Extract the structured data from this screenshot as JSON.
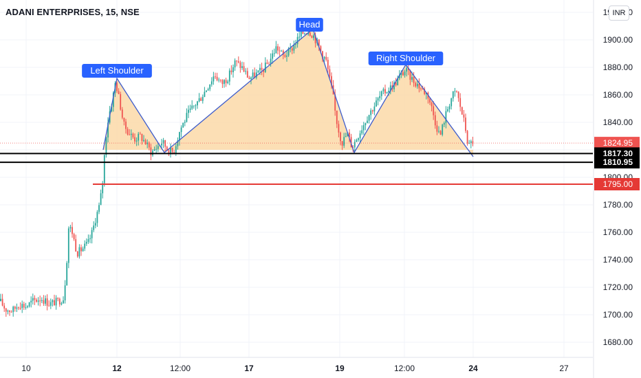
{
  "header": {
    "symbol_title": "ADANI ENTERPRISES, 15, NSE",
    "currency": "INR"
  },
  "colors": {
    "up": "#26a69a",
    "down": "#ef5350",
    "pattern_fill": "#fcd9a8",
    "pattern_line": "#3d5ccc",
    "label_bg": "#2962ff",
    "support": "#000000",
    "target": "#e53935",
    "grid": "#f0f3fa",
    "axis_text": "#131722"
  },
  "chart_data": {
    "type": "candlestick",
    "title": "ADANI ENTERPRISES, 15, NSE",
    "y_axis": {
      "ticks": [
        1680,
        1700,
        1720,
        1740,
        1760,
        1780,
        1800,
        1820,
        1840,
        1860,
        1880,
        1900,
        1920
      ],
      "tick_labels": [
        "1680.00",
        "1700.00",
        "1720.00",
        "1740.00",
        "1760.00",
        "1780.00",
        "1800.00",
        "",
        "1840.00",
        "1860.00",
        "1880.00",
        "1900.00",
        "1920.00"
      ],
      "range": [
        1669,
        1929
      ]
    },
    "x_axis": {
      "tick_labels": [
        "10",
        "12",
        "12:00",
        "17",
        "19",
        "12:00",
        "24",
        "27"
      ]
    },
    "price_path": [
      [
        0,
        1710
      ],
      [
        8,
        1704
      ],
      [
        18,
        1703
      ],
      [
        28,
        1708
      ],
      [
        38,
        1706
      ],
      [
        48,
        1710
      ],
      [
        60,
        1712
      ],
      [
        72,
        1708
      ],
      [
        85,
        1710
      ],
      [
        92,
        1712
      ],
      [
        96,
        1730
      ],
      [
        100,
        1765
      ],
      [
        105,
        1760
      ],
      [
        112,
        1745
      ],
      [
        120,
        1748
      ],
      [
        128,
        1752
      ],
      [
        134,
        1760
      ],
      [
        140,
        1772
      ],
      [
        145,
        1780
      ],
      [
        150,
        1800
      ],
      [
        153,
        1826
      ],
      [
        158,
        1845
      ],
      [
        163,
        1855
      ],
      [
        168,
        1870
      ],
      [
        174,
        1855
      ],
      [
        180,
        1838
      ],
      [
        188,
        1832
      ],
      [
        196,
        1828
      ],
      [
        204,
        1830
      ],
      [
        212,
        1825
      ],
      [
        220,
        1818
      ],
      [
        228,
        1822
      ],
      [
        236,
        1826
      ],
      [
        244,
        1820
      ],
      [
        252,
        1818
      ],
      [
        262,
        1835
      ],
      [
        272,
        1845
      ],
      [
        282,
        1852
      ],
      [
        292,
        1858
      ],
      [
        302,
        1866
      ],
      [
        312,
        1875
      ],
      [
        322,
        1868
      ],
      [
        332,
        1873
      ],
      [
        342,
        1884
      ],
      [
        352,
        1880
      ],
      [
        362,
        1872
      ],
      [
        372,
        1875
      ],
      [
        382,
        1878
      ],
      [
        392,
        1885
      ],
      [
        402,
        1895
      ],
      [
        412,
        1888
      ],
      [
        422,
        1892
      ],
      [
        432,
        1900
      ],
      [
        440,
        1905
      ],
      [
        448,
        1907
      ],
      [
        456,
        1903
      ],
      [
        462,
        1897
      ],
      [
        468,
        1890
      ],
      [
        474,
        1885
      ],
      [
        480,
        1870
      ],
      [
        484,
        1860
      ],
      [
        488,
        1845
      ],
      [
        492,
        1835
      ],
      [
        497,
        1825
      ],
      [
        505,
        1832
      ],
      [
        512,
        1822
      ],
      [
        518,
        1828
      ],
      [
        526,
        1836
      ],
      [
        534,
        1844
      ],
      [
        544,
        1852
      ],
      [
        554,
        1860
      ],
      [
        564,
        1864
      ],
      [
        574,
        1868
      ],
      [
        582,
        1874
      ],
      [
        590,
        1878
      ],
      [
        598,
        1872
      ],
      [
        606,
        1868
      ],
      [
        614,
        1864
      ],
      [
        622,
        1860
      ],
      [
        628,
        1850
      ],
      [
        634,
        1838
      ],
      [
        640,
        1830
      ],
      [
        646,
        1842
      ],
      [
        652,
        1852
      ],
      [
        658,
        1860
      ],
      [
        664,
        1862
      ],
      [
        670,
        1850
      ],
      [
        676,
        1838
      ],
      [
        681,
        1822
      ],
      [
        686,
        1826
      ]
    ],
    "pattern": {
      "name": "head and shoulders",
      "labels": [
        "Left Shoulder",
        "Head",
        "Right Shoulder"
      ],
      "points": [
        [
          150,
          1820
        ],
        [
          170,
          1872
        ],
        [
          239,
          1818
        ],
        [
          455,
          1908
        ],
        [
          515,
          1818
        ],
        [
          590,
          1882
        ],
        [
          688,
          1815
        ]
      ],
      "neckline": 1820
    },
    "levels": [
      {
        "label": "1824.95",
        "value": 1824.95,
        "kind": "last-price"
      },
      {
        "label": "1817.30",
        "value": 1817.3,
        "kind": "support"
      },
      {
        "label": "1810.95",
        "value": 1810.95,
        "kind": "support"
      },
      {
        "label": "1795.00",
        "value": 1795,
        "kind": "target"
      }
    ]
  }
}
